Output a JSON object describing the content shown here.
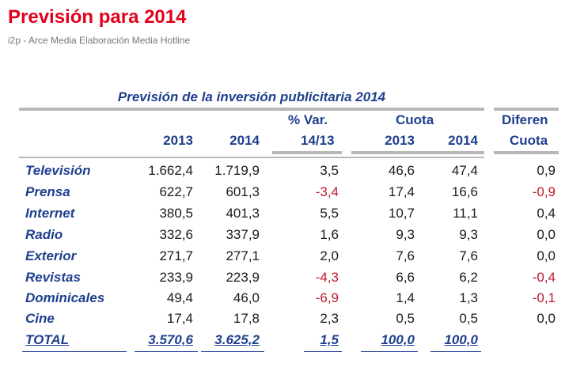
{
  "page": {
    "title": "Previsión para 2014",
    "source": "i2p - Arce Media Elaboración Media Hotline"
  },
  "table": {
    "title": "Previsión de la inversión publicitaria 2014",
    "headers": {
      "col_2013": "2013",
      "col_2014": "2014",
      "var_line1": "% Var.",
      "var_line2": "14/13",
      "cuota_group": "Cuota",
      "cuota_2013": "2013",
      "cuota_2014": "2014",
      "dif_line1": "Diferen",
      "dif_line2": "Cuota"
    },
    "rows": [
      {
        "label": "Televisión",
        "v2013": "1.662,4",
        "v2014": "1.719,9",
        "var": "3,5",
        "cuota2013": "46,6",
        "cuota2014": "47,4",
        "diff": "0,9"
      },
      {
        "label": "Prensa",
        "v2013": "622,7",
        "v2014": "601,3",
        "var": "-3,4",
        "cuota2013": "17,4",
        "cuota2014": "16,6",
        "diff": "-0,9"
      },
      {
        "label": "Internet",
        "v2013": "380,5",
        "v2014": "401,3",
        "var": "5,5",
        "cuota2013": "10,7",
        "cuota2014": "11,1",
        "diff": "0,4"
      },
      {
        "label": "Radio",
        "v2013": "332,6",
        "v2014": "337,9",
        "var": "1,6",
        "cuota2013": "9,3",
        "cuota2014": "9,3",
        "diff": "0,0"
      },
      {
        "label": "Exterior",
        "v2013": "271,7",
        "v2014": "277,1",
        "var": "2,0",
        "cuota2013": "7,6",
        "cuota2014": "7,6",
        "diff": "0,0"
      },
      {
        "label": "Revistas",
        "v2013": "233,9",
        "v2014": "223,9",
        "var": "-4,3",
        "cuota2013": "6,6",
        "cuota2014": "6,2",
        "diff": "-0,4"
      },
      {
        "label": "Dominicales",
        "v2013": "49,4",
        "v2014": "46,0",
        "var": "-6,9",
        "cuota2013": "1,4",
        "cuota2014": "1,3",
        "diff": "-0,1"
      },
      {
        "label": "Cine",
        "v2013": "17,4",
        "v2014": "17,8",
        "var": "2,3",
        "cuota2013": "0,5",
        "cuota2014": "0,5",
        "diff": "0,0"
      }
    ],
    "total": {
      "label": "TOTAL",
      "v2013": "3.570,6",
      "v2014": "3.625,2",
      "var": "1,5",
      "cuota2013": "100,0",
      "cuota2014": "100,0"
    }
  }
}
